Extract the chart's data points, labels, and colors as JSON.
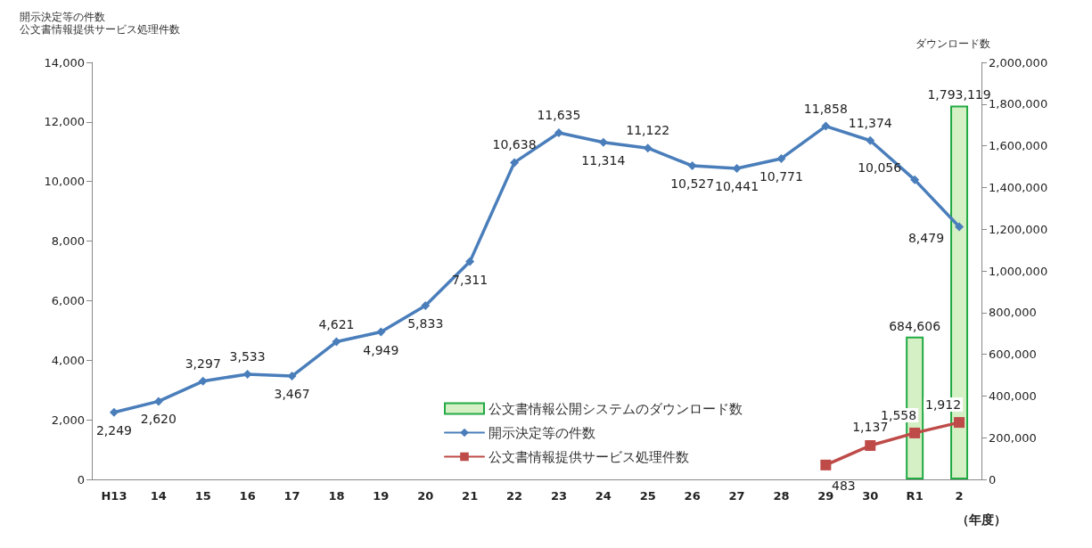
{
  "chart_data": {
    "type": "line",
    "ylabel": [
      "開示決定等の件数",
      "公文書情報提供サービス処理件数"
    ],
    "y2label": "ダウンロード数",
    "xlabel": "（年度）",
    "categories": [
      "H13",
      "14",
      "15",
      "16",
      "17",
      "18",
      "19",
      "20",
      "21",
      "22",
      "23",
      "24",
      "25",
      "26",
      "27",
      "28",
      "29",
      "30",
      "R1",
      "2"
    ],
    "series": [
      {
        "name": "公文書情報公開システムのダウンロード数",
        "type": "bar",
        "axis": "y2",
        "color": "#d4f0c4",
        "values": [
          null,
          null,
          null,
          null,
          null,
          null,
          null,
          null,
          null,
          null,
          null,
          null,
          null,
          null,
          null,
          null,
          null,
          null,
          684606,
          1793119
        ],
        "value_labels": [
          null,
          null,
          null,
          null,
          null,
          null,
          null,
          null,
          null,
          null,
          null,
          null,
          null,
          null,
          null,
          null,
          null,
          null,
          "684,606",
          "1,793,119"
        ]
      },
      {
        "name": "開示決定等の件数",
        "marker": "diamond",
        "color": "#4a7ebb",
        "values": [
          2249,
          2620,
          3297,
          3533,
          3467,
          4621,
          4949,
          5833,
          7311,
          10638,
          11635,
          11314,
          11122,
          10527,
          10441,
          10771,
          11858,
          11374,
          10056,
          8479
        ],
        "value_labels": [
          "2,249",
          "2,620",
          "3,297",
          "3,533",
          "3,467",
          "4,621",
          "4,949",
          "5,833",
          "7,311",
          "10,638",
          "11,635",
          "11,314",
          "11,122",
          "10,527",
          "10,441",
          "10,771",
          "11,858",
          "11,374",
          "10,056",
          "8,479"
        ]
      },
      {
        "name": "公文書情報提供サービス処理件数",
        "marker": "square",
        "color": "#be4b48",
        "values": [
          null,
          null,
          null,
          null,
          null,
          null,
          null,
          null,
          null,
          null,
          null,
          null,
          null,
          null,
          null,
          null,
          483,
          1137,
          1558,
          1912
        ],
        "value_labels": [
          null,
          null,
          null,
          null,
          null,
          null,
          null,
          null,
          null,
          null,
          null,
          null,
          null,
          null,
          null,
          null,
          "483",
          "1,137",
          "1,558",
          "1,912"
        ]
      }
    ],
    "ylim": [
      0,
      14000
    ],
    "yticks": [
      {
        "value": 0,
        "label": "0"
      },
      {
        "value": 2000,
        "label": "2,000"
      },
      {
        "value": 4000,
        "label": "4,000"
      },
      {
        "value": 6000,
        "label": "6,000"
      },
      {
        "value": 8000,
        "label": "8,000"
      },
      {
        "value": 10000,
        "label": "10,000"
      },
      {
        "value": 12000,
        "label": "12,000"
      },
      {
        "value": 14000,
        "label": "14,000"
      }
    ],
    "y2lim": [
      0,
      2000000
    ],
    "y2ticks": [
      {
        "value": 0,
        "label": "0"
      },
      {
        "value": 200000,
        "label": "200,000"
      },
      {
        "value": 400000,
        "label": "400,000"
      },
      {
        "value": 600000,
        "label": "600,000"
      },
      {
        "value": 800000,
        "label": "800,000"
      },
      {
        "value": 1000000,
        "label": "1,000,000"
      },
      {
        "value": 1200000,
        "label": "1,200,000"
      },
      {
        "value": 1400000,
        "label": "1,400,000"
      },
      {
        "value": 1600000,
        "label": "1,600,000"
      },
      {
        "value": 1800000,
        "label": "1,800,000"
      },
      {
        "value": 2000000,
        "label": "2,000,000"
      }
    ],
    "legend": "bottom",
    "grid": false
  }
}
